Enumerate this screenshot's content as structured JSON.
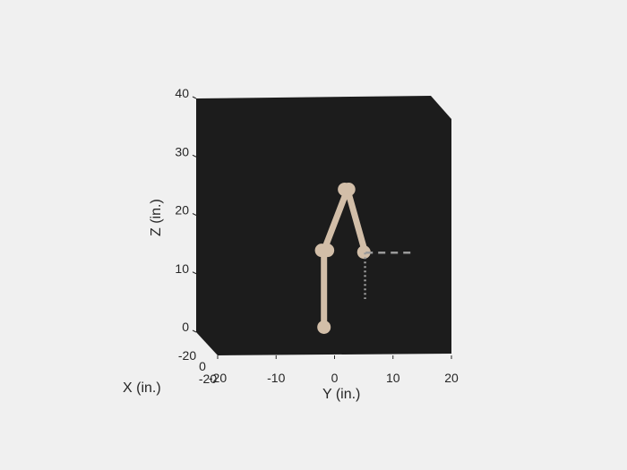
{
  "chart_data": {
    "type": "line",
    "projection": "3d",
    "grid": false,
    "axes_background": "#1c1c1c",
    "figure_background": "#f0f0f0",
    "xlabel": "X (in.)",
    "ylabel": "Y (in.)",
    "zlabel": "Z (in.)",
    "xlim": [
      -20,
      0
    ],
    "ylim": [
      -20,
      20
    ],
    "zlim": [
      0,
      40
    ],
    "x_ticks": [
      {
        "value": -20,
        "label": "-20"
      },
      {
        "value": 0,
        "label": "0"
      }
    ],
    "y_ticks": [
      {
        "value": -20,
        "label": "-20"
      },
      {
        "value": -10,
        "label": "-10"
      },
      {
        "value": 0,
        "label": "0"
      },
      {
        "value": 10,
        "label": "10"
      },
      {
        "value": 20,
        "label": "20"
      }
    ],
    "z_ticks": [
      {
        "value": 0,
        "label": "0"
      },
      {
        "value": 10,
        "label": "10"
      },
      {
        "value": 20,
        "label": "20"
      },
      {
        "value": 30,
        "label": "30"
      },
      {
        "value": 40,
        "label": "40"
      }
    ],
    "series": [
      {
        "kind": "arm-links",
        "color": "#d2bea8",
        "points": [
          {
            "y": -1.8,
            "z": -0.3
          },
          {
            "y": -1.8,
            "z": 12.8
          },
          {
            "y": 2.2,
            "z": 23.2
          },
          {
            "y": 5.2,
            "z": 12.5
          }
        ],
        "joints": [
          {
            "y": -1.8,
            "z": -0.3
          },
          {
            "y": -1.2,
            "z": 12.8
          },
          {
            "y": 2.4,
            "z": 23.2
          },
          {
            "y": 5.0,
            "z": 12.5
          }
        ]
      },
      {
        "kind": "guide-horizontal",
        "style": "dashed",
        "color": "#9a9a9a",
        "points": [
          {
            "y": 5.3,
            "z": 12.4
          },
          {
            "y": 13.0,
            "z": 12.4
          }
        ]
      },
      {
        "kind": "guide-vertical",
        "style": "dotted",
        "color": "#9a9a9a",
        "points": [
          {
            "y": 5.2,
            "z": 12.4
          },
          {
            "y": 5.2,
            "z": 4.5
          }
        ]
      }
    ]
  }
}
